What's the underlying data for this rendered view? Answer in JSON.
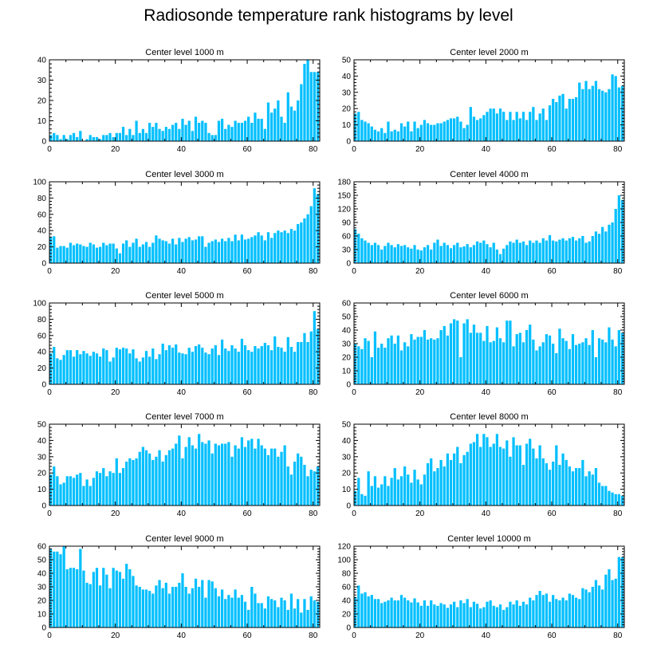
{
  "figure_title": "Radiosonde temperature rank histograms by level",
  "bar_color": "#00bfff",
  "chart_data": [
    {
      "type": "bar",
      "title": "Center level 1000 m",
      "xlim": [
        0,
        82
      ],
      "ylim": [
        0,
        40
      ],
      "xticks": [
        0,
        20,
        40,
        60,
        80
      ],
      "yticks": [
        0,
        10,
        20,
        30,
        40
      ],
      "values": [
        3,
        4,
        3,
        1,
        3,
        1,
        3,
        4,
        2,
        5,
        0,
        1,
        3,
        2,
        2,
        1,
        3,
        3,
        4,
        2,
        4,
        4,
        7,
        3,
        6,
        3,
        10,
        4,
        6,
        4,
        9,
        7,
        9,
        6,
        5,
        7,
        6,
        8,
        9,
        6,
        11,
        8,
        10,
        5,
        12,
        9,
        10,
        9,
        4,
        3,
        3,
        10,
        11,
        6,
        8,
        7,
        10,
        9,
        9,
        10,
        12,
        9,
        14,
        11,
        11,
        6,
        19,
        14,
        16,
        20,
        12,
        9,
        24,
        17,
        15,
        20,
        28,
        38,
        40,
        34,
        34,
        34
      ]
    },
    {
      "type": "bar",
      "title": "Center level 2000 m",
      "xlim": [
        0,
        82
      ],
      "ylim": [
        0,
        50
      ],
      "xticks": [
        0,
        20,
        40,
        60,
        80
      ],
      "yticks": [
        0,
        10,
        20,
        30,
        40,
        50
      ],
      "values": [
        17,
        18,
        13,
        12,
        11,
        9,
        7,
        6,
        8,
        5,
        12,
        6,
        7,
        6,
        11,
        9,
        12,
        6,
        12,
        8,
        10,
        13,
        11,
        10,
        10,
        11,
        11,
        12,
        13,
        14,
        14,
        15,
        12,
        8,
        10,
        21,
        15,
        13,
        14,
        16,
        18,
        20,
        20,
        17,
        20,
        18,
        13,
        18,
        13,
        18,
        14,
        18,
        13,
        18,
        21,
        13,
        17,
        20,
        13,
        22,
        26,
        24,
        28,
        29,
        20,
        26,
        26,
        27,
        36,
        32,
        37,
        32,
        34,
        37,
        32,
        31,
        30,
        32,
        41,
        40,
        33,
        34
      ]
    },
    {
      "type": "bar",
      "title": "Center level 3000 m",
      "xlim": [
        0,
        82
      ],
      "ylim": [
        0,
        100
      ],
      "xticks": [
        0,
        20,
        40,
        60,
        80
      ],
      "yticks": [
        0,
        20,
        40,
        60,
        80,
        100
      ],
      "values": [
        32,
        33,
        19,
        21,
        21,
        19,
        25,
        22,
        24,
        23,
        21,
        20,
        25,
        23,
        19,
        20,
        25,
        22,
        24,
        24,
        18,
        12,
        24,
        28,
        20,
        25,
        30,
        20,
        23,
        26,
        20,
        25,
        34,
        30,
        28,
        27,
        24,
        30,
        23,
        31,
        26,
        30,
        32,
        28,
        29,
        33,
        33,
        20,
        25,
        27,
        29,
        26,
        30,
        27,
        31,
        27,
        35,
        28,
        35,
        29,
        30,
        32,
        34,
        38,
        34,
        28,
        38,
        31,
        37,
        40,
        38,
        40,
        37,
        42,
        40,
        48,
        50,
        55,
        60,
        70,
        92,
        85
      ]
    },
    {
      "type": "bar",
      "title": "Center level 4000 m",
      "xlim": [
        0,
        82
      ],
      "ylim": [
        0,
        180
      ],
      "xticks": [
        0,
        20,
        40,
        60,
        80
      ],
      "yticks": [
        0,
        30,
        60,
        90,
        120,
        150,
        180
      ],
      "values": [
        75,
        65,
        55,
        50,
        45,
        40,
        45,
        40,
        30,
        38,
        45,
        40,
        35,
        42,
        38,
        40,
        35,
        32,
        40,
        30,
        28,
        35,
        40,
        30,
        45,
        52,
        38,
        45,
        40,
        33,
        40,
        45,
        35,
        37,
        42,
        35,
        40,
        48,
        45,
        50,
        42,
        35,
        45,
        30,
        20,
        32,
        40,
        48,
        45,
        52,
        45,
        48,
        40,
        50,
        45,
        50,
        45,
        55,
        50,
        62,
        50,
        48,
        52,
        55,
        50,
        55,
        58,
        50,
        55,
        60,
        45,
        48,
        60,
        70,
        65,
        80,
        70,
        85,
        90,
        120,
        150,
        140
      ]
    },
    {
      "type": "bar",
      "title": "Center level 5000 m",
      "xlim": [
        0,
        82
      ],
      "ylim": [
        0,
        100
      ],
      "xticks": [
        0,
        20,
        40,
        60,
        80
      ],
      "yticks": [
        0,
        20,
        40,
        60,
        80,
        100
      ],
      "values": [
        38,
        46,
        32,
        30,
        36,
        42,
        42,
        34,
        42,
        37,
        41,
        38,
        35,
        40,
        38,
        34,
        44,
        42,
        28,
        33,
        45,
        43,
        45,
        44,
        38,
        43,
        32,
        28,
        33,
        41,
        34,
        44,
        31,
        37,
        50,
        42,
        48,
        45,
        49,
        39,
        38,
        37,
        45,
        40,
        47,
        49,
        45,
        39,
        37,
        44,
        48,
        36,
        55,
        44,
        41,
        48,
        44,
        40,
        56,
        48,
        42,
        40,
        47,
        44,
        47,
        51,
        48,
        42,
        59,
        46,
        45,
        40,
        58,
        46,
        40,
        52,
        52,
        63,
        52,
        65,
        90,
        68
      ]
    },
    {
      "type": "bar",
      "title": "Center level 6000 m",
      "xlim": [
        0,
        82
      ],
      "ylim": [
        0,
        60
      ],
      "xticks": [
        0,
        20,
        40,
        60,
        80
      ],
      "yticks": [
        0,
        10,
        20,
        30,
        40,
        50,
        60
      ],
      "values": [
        30,
        28,
        26,
        34,
        32,
        20,
        39,
        27,
        30,
        27,
        34,
        36,
        30,
        36,
        25,
        31,
        28,
        37,
        33,
        35,
        35,
        40,
        33,
        34,
        33,
        34,
        40,
        43,
        36,
        45,
        48,
        47,
        20,
        45,
        48,
        38,
        44,
        38,
        38,
        32,
        43,
        31,
        32,
        42,
        34,
        31,
        47,
        47,
        28,
        37,
        38,
        31,
        40,
        44,
        33,
        25,
        28,
        31,
        37,
        36,
        30,
        23,
        41,
        34,
        32,
        26,
        37,
        29,
        30,
        31,
        34,
        29,
        40,
        20,
        34,
        33,
        31,
        42,
        33,
        28,
        40,
        38
      ]
    },
    {
      "type": "bar",
      "title": "Center level 7000 m",
      "xlim": [
        0,
        82
      ],
      "ylim": [
        0,
        50
      ],
      "xticks": [
        0,
        20,
        40,
        60,
        80
      ],
      "yticks": [
        0,
        10,
        20,
        30,
        40,
        50
      ],
      "values": [
        19,
        24,
        18,
        13,
        14,
        18,
        18,
        17,
        19,
        20,
        12,
        16,
        12,
        17,
        21,
        20,
        23,
        18,
        21,
        20,
        29,
        20,
        23,
        27,
        29,
        28,
        29,
        33,
        36,
        34,
        32,
        28,
        30,
        34,
        27,
        31,
        34,
        35,
        38,
        43,
        29,
        36,
        42,
        37,
        35,
        44,
        39,
        38,
        40,
        32,
        38,
        37,
        38,
        38,
        39,
        30,
        37,
        35,
        42,
        36,
        40,
        41,
        35,
        41,
        37,
        35,
        31,
        35,
        35,
        30,
        33,
        37,
        24,
        19,
        27,
        32,
        30,
        25,
        18,
        22,
        21,
        24
      ]
    },
    {
      "type": "bar",
      "title": "Center level 8000 m",
      "xlim": [
        0,
        82
      ],
      "ylim": [
        0,
        50
      ],
      "xticks": [
        0,
        20,
        40,
        60,
        80
      ],
      "yticks": [
        0,
        10,
        20,
        30,
        40,
        50
      ],
      "values": [
        9,
        17,
        7,
        6,
        21,
        12,
        18,
        11,
        13,
        18,
        12,
        17,
        23,
        16,
        18,
        24,
        19,
        14,
        22,
        16,
        13,
        19,
        26,
        29,
        21,
        23,
        28,
        24,
        32,
        28,
        32,
        36,
        26,
        31,
        33,
        38,
        39,
        44,
        36,
        44,
        42,
        36,
        38,
        44,
        36,
        35,
        40,
        30,
        42,
        37,
        37,
        25,
        38,
        41,
        35,
        29,
        37,
        29,
        26,
        22,
        27,
        37,
        25,
        32,
        28,
        24,
        21,
        23,
        23,
        28,
        18,
        21,
        19,
        23,
        14,
        12,
        12,
        9,
        8,
        7,
        7,
        6
      ]
    },
    {
      "type": "bar",
      "title": "Center level 9000 m",
      "xlim": [
        0,
        82
      ],
      "ylim": [
        0,
        60
      ],
      "xticks": [
        0,
        20,
        40,
        60,
        80
      ],
      "yticks": [
        0,
        10,
        20,
        30,
        40,
        50,
        60
      ],
      "values": [
        58,
        56,
        56,
        54,
        60,
        43,
        44,
        44,
        43,
        58,
        42,
        33,
        32,
        41,
        44,
        31,
        44,
        39,
        29,
        44,
        42,
        41,
        36,
        47,
        43,
        38,
        31,
        30,
        28,
        28,
        27,
        25,
        31,
        35,
        29,
        33,
        25,
        30,
        30,
        33,
        40,
        30,
        25,
        29,
        36,
        30,
        35,
        22,
        35,
        34,
        29,
        23,
        28,
        21,
        24,
        22,
        28,
        22,
        24,
        19,
        13,
        30,
        25,
        18,
        18,
        14,
        23,
        21,
        20,
        15,
        22,
        20,
        13,
        25,
        14,
        21,
        11,
        21,
        13,
        23,
        20,
        19
      ]
    },
    {
      "type": "bar",
      "title": "Center level 10000 m",
      "xlim": [
        0,
        82
      ],
      "ylim": [
        0,
        120
      ],
      "xticks": [
        0,
        20,
        40,
        60,
        80
      ],
      "yticks": [
        0,
        20,
        40,
        60,
        80,
        100,
        120
      ],
      "values": [
        45,
        62,
        50,
        52,
        46,
        48,
        42,
        42,
        36,
        38,
        40,
        44,
        40,
        40,
        48,
        44,
        40,
        37,
        43,
        37,
        32,
        40,
        32,
        40,
        34,
        32,
        36,
        34,
        29,
        34,
        38,
        30,
        40,
        36,
        42,
        30,
        38,
        35,
        28,
        30,
        38,
        40,
        32,
        30,
        34,
        26,
        30,
        38,
        34,
        40,
        32,
        38,
        34,
        44,
        40,
        48,
        54,
        48,
        50,
        38,
        48,
        42,
        40,
        44,
        40,
        50,
        48,
        44,
        42,
        58,
        56,
        52,
        60,
        70,
        62,
        56,
        78,
        86,
        70,
        72,
        104,
        104
      ]
    }
  ]
}
